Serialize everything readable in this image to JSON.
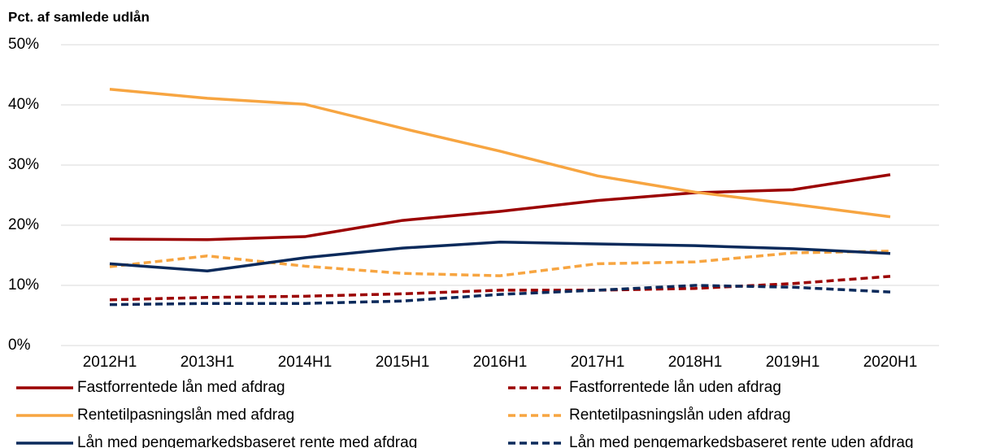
{
  "chart_data": {
    "type": "line",
    "title": "Pct. af samlede udlån",
    "categories": [
      "2012H1",
      "2013H1",
      "2014H1",
      "2015H1",
      "2016H1",
      "2017H1",
      "2018H1",
      "2019H1",
      "2020H1"
    ],
    "ylim": [
      0,
      50
    ],
    "yticks": [
      {
        "value": 0,
        "label": "0%"
      },
      {
        "value": 10,
        "label": "10%"
      },
      {
        "value": 20,
        "label": "20%"
      },
      {
        "value": 30,
        "label": "30%"
      },
      {
        "value": 40,
        "label": "40%"
      },
      {
        "value": 50,
        "label": "50%"
      }
    ],
    "grid": true,
    "legend": "bottom",
    "series": [
      {
        "name": "Fastforrentede lån med afdrag",
        "color": "#9b0000",
        "style": "solid",
        "values": [
          17.7,
          17.6,
          18.1,
          20.8,
          22.3,
          24.1,
          25.4,
          25.9,
          28.4
        ]
      },
      {
        "name": "Fastforrentede lån uden afdrag",
        "color": "#9b0000",
        "style": "dashed",
        "values": [
          7.6,
          8.0,
          8.2,
          8.6,
          9.2,
          9.2,
          9.5,
          10.3,
          11.5
        ]
      },
      {
        "name": "Rentetilpasningslån med afdrag",
        "color": "#f7a541",
        "style": "solid",
        "values": [
          42.6,
          41.1,
          40.1,
          36.1,
          32.3,
          28.2,
          25.5,
          23.5,
          21.4
        ]
      },
      {
        "name": "Rentetilpasningslån uden afdrag",
        "color": "#f7a541",
        "style": "dashed",
        "values": [
          13.1,
          14.9,
          13.2,
          12.0,
          11.6,
          13.6,
          13.9,
          15.4,
          15.7
        ]
      },
      {
        "name": "Lån med pengemarkedsbaseret rente med afdrag",
        "color": "#0b2a5b",
        "style": "solid",
        "values": [
          13.6,
          12.4,
          14.6,
          16.2,
          17.2,
          16.9,
          16.6,
          16.1,
          15.3
        ]
      },
      {
        "name": "Lån med pengemarkedsbaseret rente uden afdrag",
        "color": "#0b2a5b",
        "style": "dashed",
        "values": [
          6.8,
          7.0,
          7.0,
          7.4,
          8.5,
          9.2,
          10.0,
          9.7,
          8.9
        ]
      }
    ]
  }
}
